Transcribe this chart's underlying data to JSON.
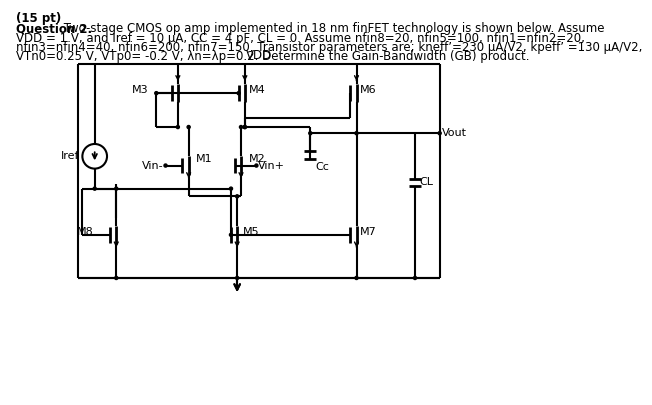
{
  "title_line1": "(15 pt)",
  "title_line2_bold": "Question 2.",
  "title_line2_rest": " Two-stage CMOS op amp implemented in 18 nm finFET technology is shown below. Assume",
  "title_line3": "VDD = 1 V, and Iref = 10 μA, CC = 4 pF, CL = 0. Assume nfin8=20, nfin5=100, nfin1=nfin2=20,",
  "title_line4": "nfin3=nfin4=40, nfin6=200, nfin7=150. Transistor parameters are; kneff’=230 μA/V2, kpeff’ =130 μA/V2,",
  "title_line5": "VTn0=0.25 V, VTp0= -0.2 V, λn=λp=0.2. Determine the Gain-Bandwidth (GB) product.",
  "vdd_label": "VDD",
  "bg_color": "#ffffff"
}
